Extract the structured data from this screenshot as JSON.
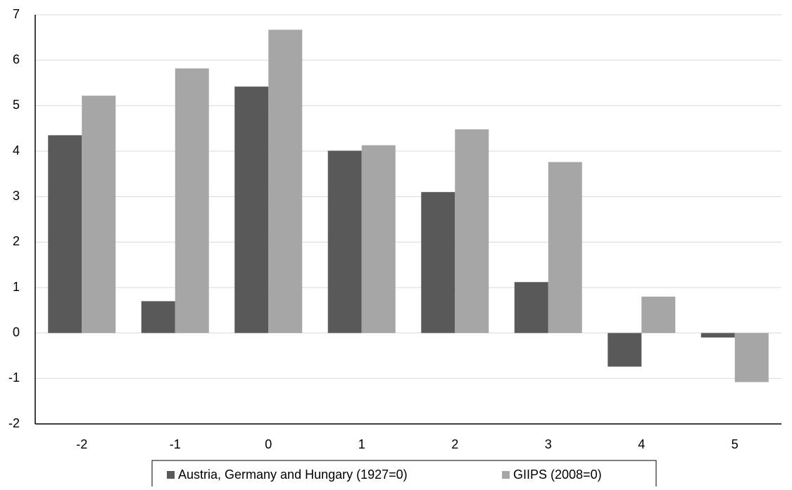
{
  "chart_data": {
    "type": "bar",
    "categories": [
      "-2",
      "-1",
      "0",
      "1",
      "2",
      "3",
      "4",
      "5"
    ],
    "series": [
      {
        "name": "Austria, Germany and Hungary (1927=0)",
        "color": "#595959",
        "values": [
          4.35,
          0.7,
          5.42,
          4.01,
          3.1,
          1.12,
          -0.74,
          -0.1
        ]
      },
      {
        "name": "GIIPS (2008=0)",
        "color": "#a6a6a6",
        "values": [
          5.22,
          5.82,
          6.67,
          4.13,
          4.48,
          3.76,
          0.8,
          -1.08
        ]
      }
    ],
    "ylim": [
      -2,
      7
    ],
    "yticks": [
      -2,
      -1,
      0,
      1,
      2,
      3,
      4,
      5,
      6,
      7
    ],
    "grid": true,
    "legend": "bottom"
  }
}
